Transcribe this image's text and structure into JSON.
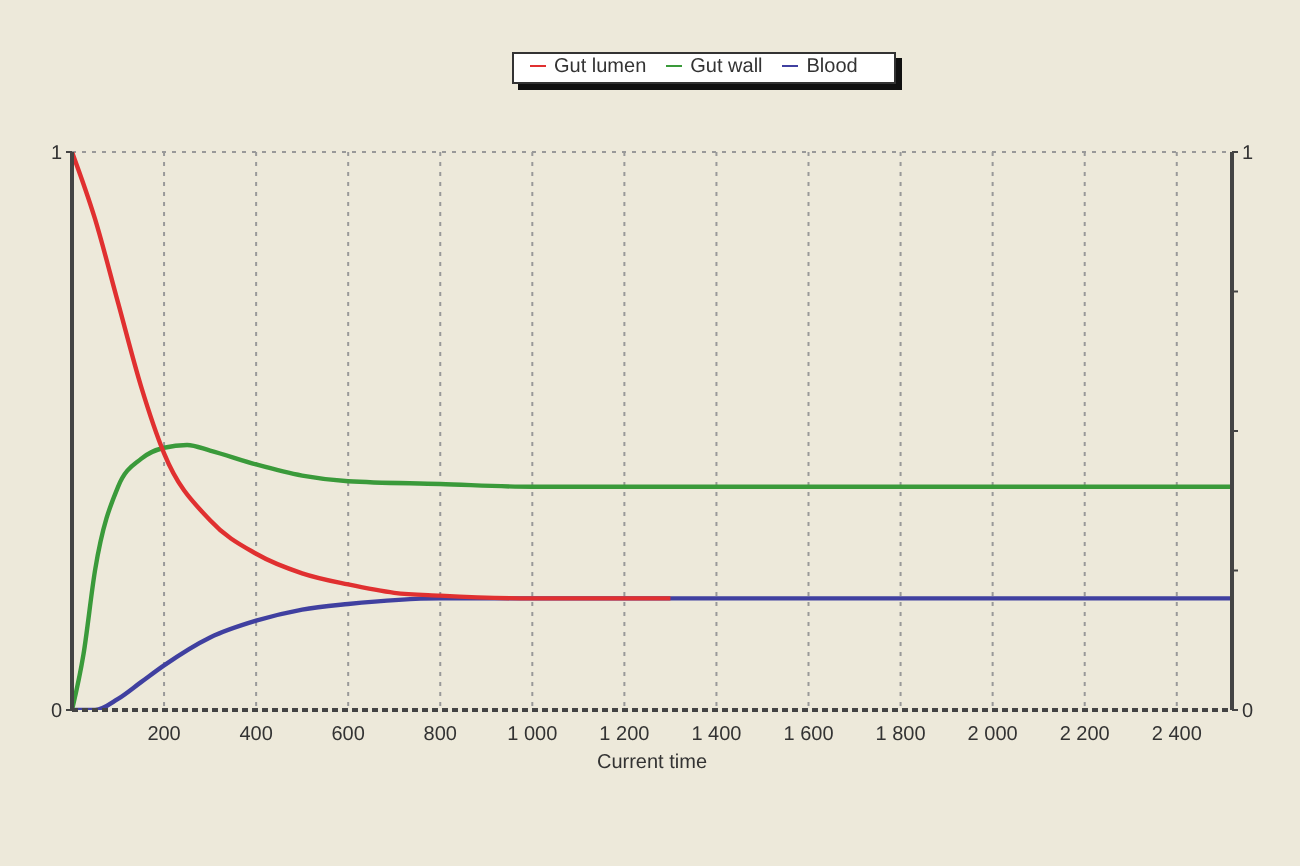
{
  "chart_data": {
    "type": "line",
    "xlabel": "Current time",
    "xlim": [
      0,
      2520
    ],
    "xticks": [
      200,
      400,
      600,
      800,
      {
        "value": 1000,
        "label": "1 000"
      },
      {
        "value": 1200,
        "label": "1 200"
      },
      {
        "value": 1400,
        "label": "1 400"
      },
      {
        "value": 1600,
        "label": "1 600"
      },
      {
        "value": 1800,
        "label": "1 800"
      },
      {
        "value": 2000,
        "label": "2 000"
      },
      {
        "value": 2200,
        "label": "2 200"
      },
      {
        "value": 2400,
        "label": "2 400"
      }
    ],
    "ylim": [
      0,
      1
    ],
    "yticks": [
      0,
      1
    ],
    "y2lim": [
      0,
      1
    ],
    "y2ticks": [
      0,
      {
        "value": 0.25,
        "label": null
      },
      {
        "value": 0.5,
        "label": null
      },
      {
        "value": 0.75,
        "label": null
      },
      1
    ],
    "grid": true,
    "legend": "top",
    "marker": "none",
    "line_style": "solid",
    "series": [
      {
        "name": "Gut lumen",
        "color": "#e03030",
        "x": [
          0,
          50,
          100,
          150,
          200,
          300,
          400,
          500,
          600,
          700,
          800,
          1000,
          1300
        ],
        "values": [
          1,
          0.88,
          0.73,
          0.58,
          0.46,
          0.34,
          0.28,
          0.245,
          0.225,
          0.21,
          0.205,
          0.2,
          0.2
        ]
      },
      {
        "name": "Gut wall",
        "color": "#3a9a3a",
        "x": [
          0,
          25,
          50,
          100,
          150,
          200,
          250,
          300,
          400,
          500,
          600,
          800,
          1000,
          1500,
          2520
        ],
        "values": [
          0,
          0.1,
          0.25,
          0.4,
          0.45,
          0.47,
          0.475,
          0.465,
          0.44,
          0.42,
          0.41,
          0.405,
          0.4,
          0.4,
          0.4
        ]
      },
      {
        "name": "Blood",
        "color": "#4040a0",
        "x": [
          0,
          50,
          100,
          150,
          200,
          300,
          400,
          500,
          600,
          800,
          1000,
          2520
        ],
        "values": [
          0,
          0,
          0.02,
          0.05,
          0.08,
          0.13,
          0.16,
          0.18,
          0.19,
          0.2,
          0.2,
          0.2
        ]
      }
    ]
  }
}
